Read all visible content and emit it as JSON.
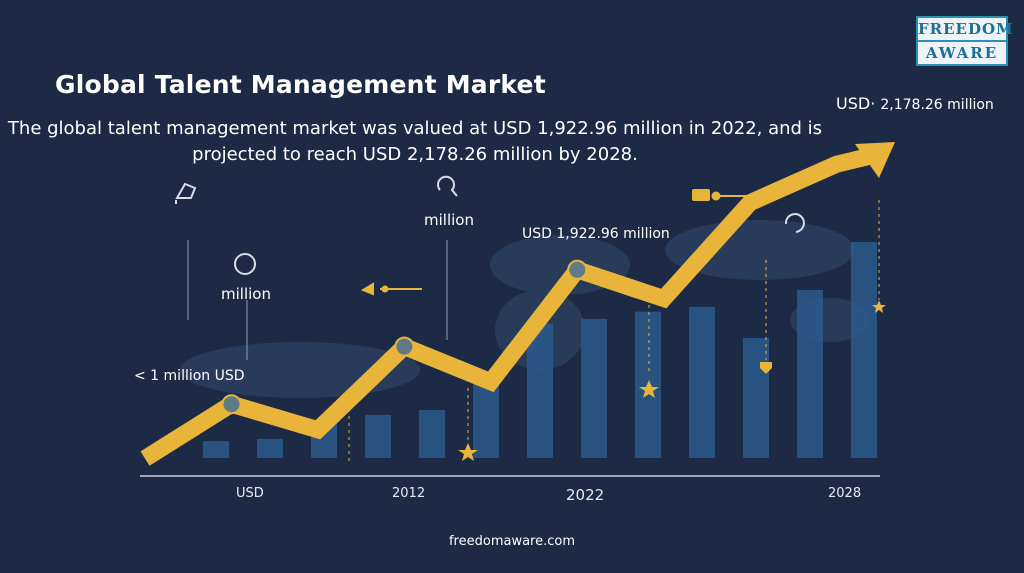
{
  "logo": {
    "line1": "FREEDOM",
    "line2": "AWARE"
  },
  "footer": "freedomaware.com",
  "chart_data": {
    "type": "bar",
    "title": "Global Talent Management Market",
    "subtitle": "The global talent management market was valued at USD 1,922.96 million in 2022, and is projected to reach USD 2,178.26 million by 2028.",
    "bars": [
      0.7,
      0.8,
      1.6,
      1.8,
      2.0,
      3.6,
      5.6,
      5.8,
      6.1,
      6.3,
      5.0,
      7.0,
      9.0
    ],
    "trend": [
      0.2,
      1.9,
      1.1,
      3.7,
      2.6,
      6.1,
      5.2,
      8.2,
      9.4
    ],
    "annotations": {
      "usd_million_peak": "USD·",
      "peak_value": "2,178.26 million",
      "value_2022": "USD 1,922.96 million",
      "million_a": "million",
      "million_b": "million",
      "less_than": "< 1 million USD"
    },
    "x_ticks": [
      "USD",
      "2012",
      "2022",
      "2028"
    ],
    "colors": {
      "background": "#1c2a45",
      "bars": "#2a5a8c",
      "trend": "#e8b43a",
      "marker": "#5e7b86"
    }
  }
}
